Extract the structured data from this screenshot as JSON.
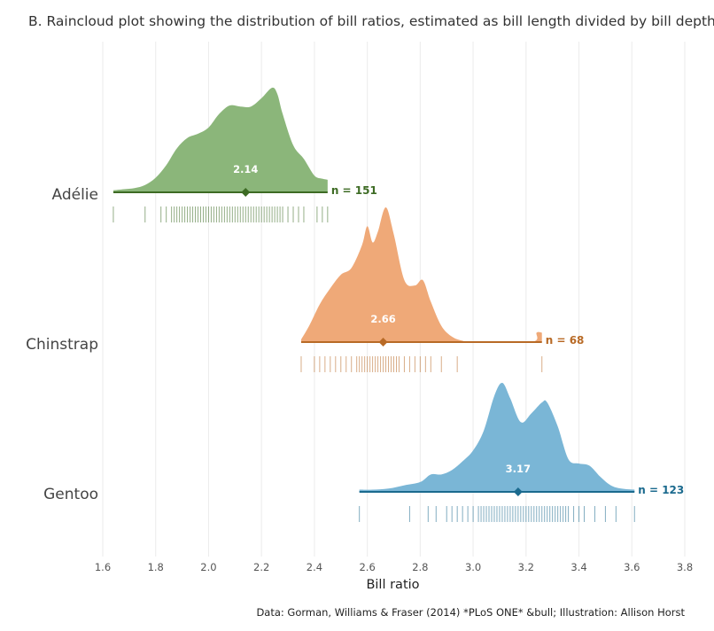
{
  "title": "B. Raincloud plot showing the distribution of bill ratios, estimated as bill length divided by bill depth.",
  "caption": "Data: Gorman, Williams & Fraser (2014) *PLoS ONE* &bull; Illustration: Allison Horst",
  "chart_data": {
    "type": "raincloud",
    "title": "B. Raincloud plot showing the distribution of bill ratios, estimated as bill length divided by bill depth.",
    "xlabel": "Bill ratio",
    "ylabel": "",
    "xlim": [
      1.6,
      3.8
    ],
    "x_ticks": [
      1.6,
      1.8,
      2.0,
      2.2,
      2.4,
      2.6,
      2.8,
      3.0,
      3.2,
      3.4,
      3.6,
      3.8
    ],
    "x_tick_labels": [
      "1.6",
      "1.8",
      "2.0",
      "2.2",
      "2.4",
      "2.6",
      "2.8",
      "3.0",
      "3.2",
      "3.4",
      "3.6",
      "3.8"
    ],
    "grid": true,
    "series": [
      {
        "name": "Adélie",
        "color": "#6B9E4F",
        "dark_color": "#3D6B24",
        "fill_color": "#8BB67A",
        "n_label": "n = 151",
        "median": 2.14,
        "median_label": "2.14",
        "range": [
          1.64,
          2.45
        ],
        "density": [
          [
            1.64,
            0.02
          ],
          [
            1.68,
            0.03
          ],
          [
            1.72,
            0.04
          ],
          [
            1.76,
            0.07
          ],
          [
            1.8,
            0.14
          ],
          [
            1.84,
            0.26
          ],
          [
            1.88,
            0.42
          ],
          [
            1.92,
            0.52
          ],
          [
            1.96,
            0.56
          ],
          [
            2.0,
            0.62
          ],
          [
            2.04,
            0.75
          ],
          [
            2.08,
            0.83
          ],
          [
            2.12,
            0.82
          ],
          [
            2.16,
            0.82
          ],
          [
            2.2,
            0.9
          ],
          [
            2.24,
            1.0
          ],
          [
            2.26,
            0.94
          ],
          [
            2.28,
            0.75
          ],
          [
            2.32,
            0.45
          ],
          [
            2.36,
            0.32
          ],
          [
            2.4,
            0.16
          ],
          [
            2.43,
            0.13
          ],
          [
            2.45,
            0.12
          ]
        ],
        "rug": [
          1.64,
          1.76,
          1.82,
          1.84,
          1.86,
          1.87,
          1.88,
          1.89,
          1.9,
          1.91,
          1.92,
          1.93,
          1.94,
          1.95,
          1.96,
          1.97,
          1.98,
          1.99,
          2.0,
          2.01,
          2.02,
          2.03,
          2.04,
          2.05,
          2.06,
          2.07,
          2.08,
          2.09,
          2.1,
          2.11,
          2.12,
          2.13,
          2.14,
          2.15,
          2.16,
          2.17,
          2.18,
          2.19,
          2.2,
          2.21,
          2.22,
          2.23,
          2.24,
          2.25,
          2.26,
          2.27,
          2.28,
          2.3,
          2.32,
          2.34,
          2.36,
          2.41,
          2.43,
          2.45
        ]
      },
      {
        "name": "Chinstrap",
        "color": "#E89D5F",
        "dark_color": "#B86A26",
        "fill_color": "#EFA978",
        "n_label": "n = 68",
        "median": 2.66,
        "median_label": "2.66",
        "range": [
          2.35,
          3.26
        ],
        "density": [
          [
            2.35,
            0.02
          ],
          [
            2.38,
            0.12
          ],
          [
            2.42,
            0.28
          ],
          [
            2.46,
            0.4
          ],
          [
            2.5,
            0.5
          ],
          [
            2.54,
            0.55
          ],
          [
            2.58,
            0.72
          ],
          [
            2.6,
            0.86
          ],
          [
            2.62,
            0.74
          ],
          [
            2.64,
            0.82
          ],
          [
            2.67,
            1.0
          ],
          [
            2.7,
            0.8
          ],
          [
            2.74,
            0.46
          ],
          [
            2.78,
            0.42
          ],
          [
            2.81,
            0.46
          ],
          [
            2.84,
            0.3
          ],
          [
            2.88,
            0.12
          ],
          [
            2.92,
            0.04
          ],
          [
            2.96,
            0.01
          ],
          [
            3.0,
            0.0
          ],
          [
            3.22,
            0.0
          ],
          [
            3.24,
            0.07
          ],
          [
            3.26,
            0.07
          ]
        ],
        "rug": [
          2.35,
          2.4,
          2.42,
          2.44,
          2.46,
          2.48,
          2.5,
          2.52,
          2.54,
          2.56,
          2.57,
          2.58,
          2.59,
          2.6,
          2.61,
          2.62,
          2.63,
          2.64,
          2.65,
          2.66,
          2.67,
          2.68,
          2.69,
          2.7,
          2.71,
          2.72,
          2.74,
          2.76,
          2.78,
          2.8,
          2.82,
          2.84,
          2.88,
          2.94,
          3.26
        ]
      },
      {
        "name": "Gentoo",
        "color": "#5A9FC7",
        "dark_color": "#1B6A8E",
        "fill_color": "#7AB6D6",
        "n_label": "n = 123",
        "median": 3.17,
        "median_label": "3.17",
        "range": [
          2.57,
          3.61
        ],
        "density": [
          [
            2.57,
            0.02
          ],
          [
            2.62,
            0.02
          ],
          [
            2.68,
            0.03
          ],
          [
            2.74,
            0.06
          ],
          [
            2.8,
            0.09
          ],
          [
            2.84,
            0.16
          ],
          [
            2.88,
            0.16
          ],
          [
            2.92,
            0.2
          ],
          [
            2.96,
            0.28
          ],
          [
            3.0,
            0.38
          ],
          [
            3.04,
            0.56
          ],
          [
            3.08,
            0.88
          ],
          [
            3.11,
            1.0
          ],
          [
            3.14,
            0.86
          ],
          [
            3.18,
            0.64
          ],
          [
            3.22,
            0.72
          ],
          [
            3.26,
            0.82
          ],
          [
            3.28,
            0.82
          ],
          [
            3.32,
            0.6
          ],
          [
            3.36,
            0.3
          ],
          [
            3.4,
            0.26
          ],
          [
            3.44,
            0.24
          ],
          [
            3.48,
            0.14
          ],
          [
            3.52,
            0.06
          ],
          [
            3.56,
            0.03
          ],
          [
            3.61,
            0.02
          ]
        ],
        "rug": [
          2.57,
          2.76,
          2.83,
          2.86,
          2.9,
          2.92,
          2.94,
          2.96,
          2.98,
          3.0,
          3.02,
          3.03,
          3.04,
          3.05,
          3.06,
          3.07,
          3.08,
          3.09,
          3.1,
          3.11,
          3.12,
          3.13,
          3.14,
          3.15,
          3.16,
          3.17,
          3.18,
          3.19,
          3.2,
          3.21,
          3.22,
          3.23,
          3.24,
          3.25,
          3.26,
          3.27,
          3.28,
          3.29,
          3.3,
          3.31,
          3.32,
          3.33,
          3.34,
          3.35,
          3.36,
          3.38,
          3.4,
          3.42,
          3.46,
          3.5,
          3.54,
          3.61
        ]
      }
    ]
  }
}
